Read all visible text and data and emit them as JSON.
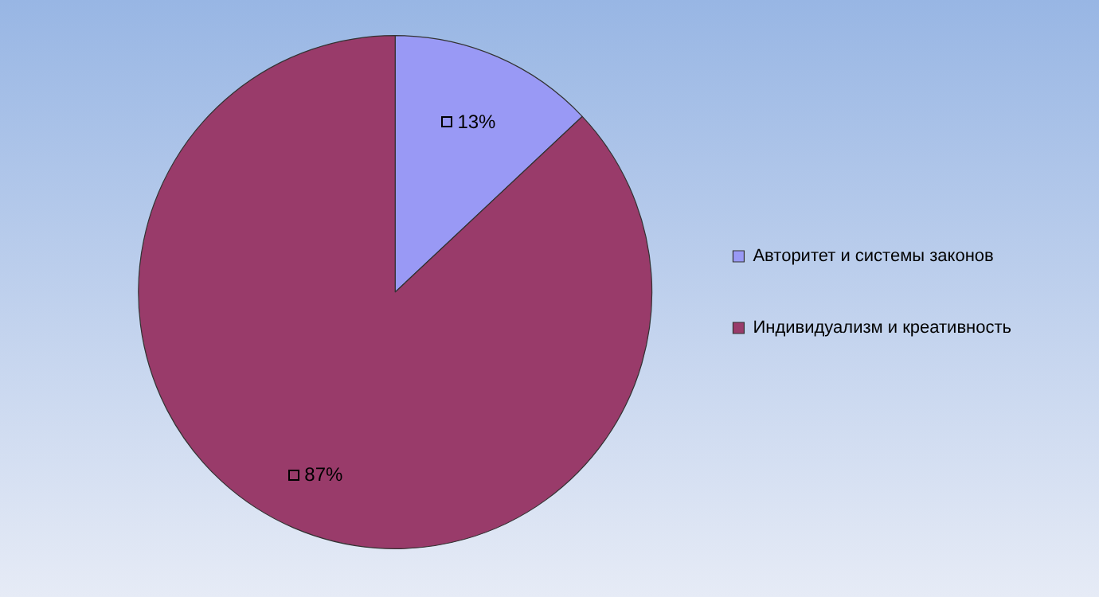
{
  "chart_data": {
    "type": "pie",
    "categories": [
      "Авторитет и системы законов",
      "Индивидуализм и креативность"
    ],
    "values": [
      13,
      87
    ],
    "colors": [
      "#9999f5",
      "#993b6a"
    ],
    "value_labels": [
      "13%",
      "87%"
    ],
    "legend": "right"
  }
}
